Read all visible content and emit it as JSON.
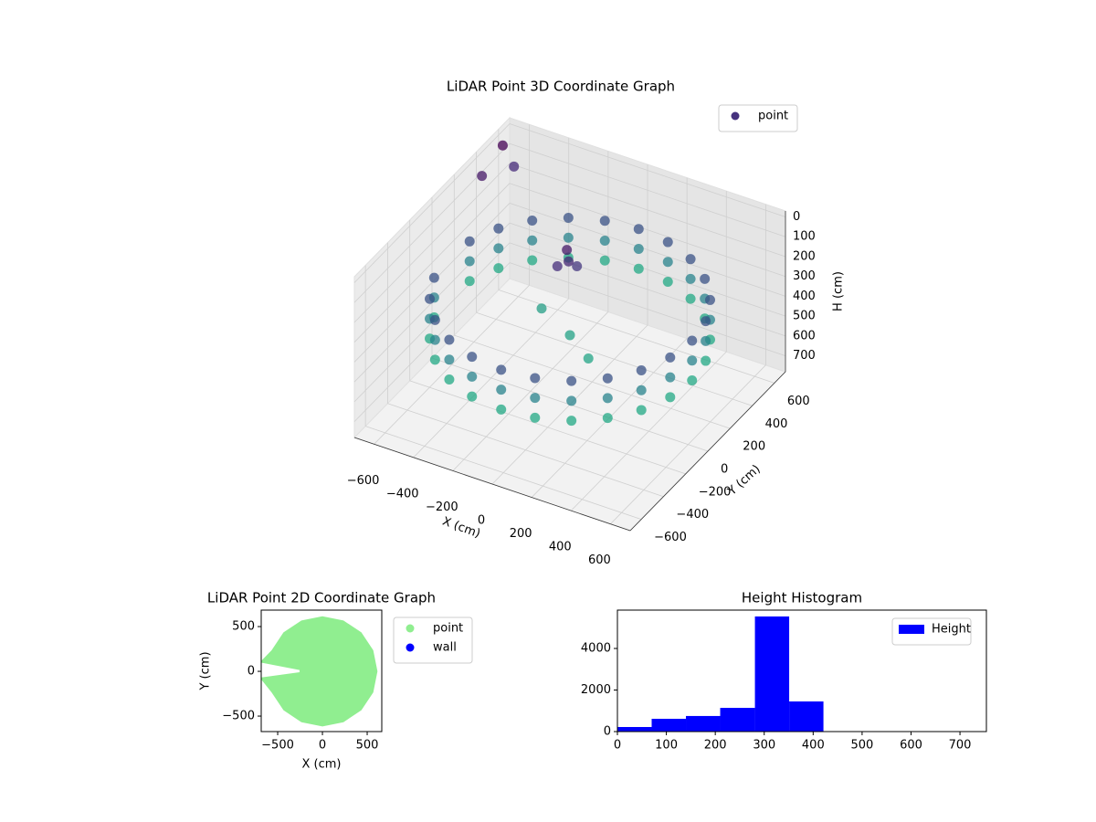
{
  "chart_data": [
    {
      "type": "scatter3d",
      "title": "LiDAR Point 3D Coordinate Graph",
      "xlabel": "X (cm)",
      "ylabel": "Y (cm)",
      "zlabel": "H (cm)",
      "xlim": [
        -700,
        700
      ],
      "ylim": [
        -700,
        700
      ],
      "zlim": [
        -30,
        780
      ],
      "zinvert": true,
      "xticks": [
        {
          "value": -600,
          "label": "−600"
        },
        {
          "value": -400,
          "label": "−400"
        },
        {
          "value": -200,
          "label": "−200"
        },
        0,
        200,
        400,
        600
      ],
      "yticks": [
        {
          "value": -600,
          "label": "−600"
        },
        {
          "value": -400,
          "label": "−400"
        },
        {
          "value": -200,
          "label": "−200"
        },
        0,
        200,
        400,
        600
      ],
      "zticks": [
        0,
        100,
        200,
        300,
        400,
        500,
        600,
        700
      ],
      "colormap": [
        "#440154",
        "#46327e",
        "#2a788e",
        "#22a884"
      ],
      "legend": "upper right",
      "series": [
        {
          "name": "point",
          "color": "#46327e",
          "x": [
            620,
            599,
            537,
            438,
            310,
            160,
            0,
            -160,
            -310,
            -438,
            -537,
            -599,
            -599,
            -537,
            -438,
            -310,
            -160,
            0,
            160,
            310,
            438,
            537,
            599,
            620,
            599,
            537,
            438,
            310,
            160,
            0,
            -160,
            -310,
            -438,
            -537,
            -599,
            -599,
            -537,
            -438,
            -310,
            -160,
            0,
            160,
            310,
            438,
            537,
            599,
            620,
            599,
            537,
            438,
            310,
            160,
            0,
            -160,
            -310,
            -438,
            -537,
            -599,
            -599,
            -537,
            -438,
            -310,
            -160,
            0,
            160,
            310,
            438,
            537,
            599,
            -100,
            -80,
            -60,
            -120,
            0,
            -200,
            150,
            -690,
            -700,
            -650
          ],
          "y": [
            0,
            160,
            310,
            438,
            537,
            599,
            620,
            599,
            537,
            438,
            310,
            160,
            -160,
            -310,
            -438,
            -537,
            -599,
            -620,
            -599,
            -537,
            -438,
            -310,
            -160,
            0,
            160,
            310,
            438,
            537,
            599,
            620,
            599,
            537,
            438,
            310,
            160,
            -160,
            -310,
            -438,
            -537,
            -599,
            -620,
            -599,
            -537,
            -438,
            -310,
            -160,
            0,
            160,
            310,
            438,
            537,
            599,
            620,
            599,
            537,
            438,
            310,
            160,
            -160,
            -310,
            -438,
            -537,
            -599,
            -620,
            -599,
            -537,
            -438,
            -310,
            -160,
            150,
            130,
            170,
            100,
            0,
            100,
            -100,
            620,
            450,
            650
          ],
          "z": [
            250,
            250,
            250,
            250,
            250,
            250,
            250,
            250,
            250,
            250,
            250,
            250,
            250,
            250,
            250,
            250,
            250,
            250,
            250,
            250,
            250,
            250,
            250,
            350,
            350,
            350,
            350,
            350,
            350,
            350,
            350,
            350,
            350,
            350,
            350,
            350,
            350,
            350,
            350,
            350,
            350,
            350,
            350,
            350,
            350,
            350,
            450,
            450,
            450,
            450,
            450,
            450,
            450,
            450,
            450,
            450,
            450,
            450,
            450,
            450,
            450,
            450,
            450,
            450,
            450,
            450,
            450,
            450,
            450,
            120,
            160,
            200,
            180,
            430,
            420,
            440,
            60,
            120,
            170
          ]
        }
      ]
    },
    {
      "type": "scatter",
      "title": "LiDAR Point 2D Coordinate Graph",
      "xlabel": "X (cm)",
      "ylabel": "Y (cm)",
      "xlim": [
        -684,
        663
      ],
      "ylim": [
        -673,
        684
      ],
      "xticks": [
        {
          "value": -500,
          "label": "−500"
        },
        0,
        500
      ],
      "yticks": [
        {
          "value": -500,
          "label": "−500"
        },
        0,
        500
      ],
      "legend": "outside upper right",
      "series": [
        {
          "name": "point",
          "color": "#90ee90",
          "x": [
            615,
            568,
            435,
            235,
            0,
            -235,
            -435,
            -568,
            -700,
            -255,
            -255,
            -700,
            -568,
            -435,
            -235,
            0,
            235,
            435,
            568
          ],
          "y": [
            0,
            235,
            435,
            568,
            615,
            568,
            435,
            235,
            100,
            15,
            -10,
            -70,
            -235,
            -435,
            -568,
            -615,
            -568,
            -435,
            -235
          ]
        },
        {
          "name": "wall",
          "color": "#0000ff",
          "x": [],
          "y": []
        }
      ]
    },
    {
      "type": "histogram",
      "title": "Height Histogram",
      "xlim": [
        0,
        754
      ],
      "ylim": [
        0,
        5846
      ],
      "xticks": [
        0,
        100,
        200,
        300,
        400,
        500,
        600,
        700
      ],
      "yticks": [
        0,
        2000,
        4000
      ],
      "legend": "upper right",
      "bins": [
        0,
        70,
        140,
        210,
        281,
        351,
        421,
        492,
        562,
        632,
        703
      ],
      "series": [
        {
          "name": "Height",
          "color": "#0000ff",
          "values": [
            220,
            615,
            750,
            1140,
            5540,
            1450,
            0,
            0,
            0,
            0
          ]
        }
      ]
    }
  ]
}
